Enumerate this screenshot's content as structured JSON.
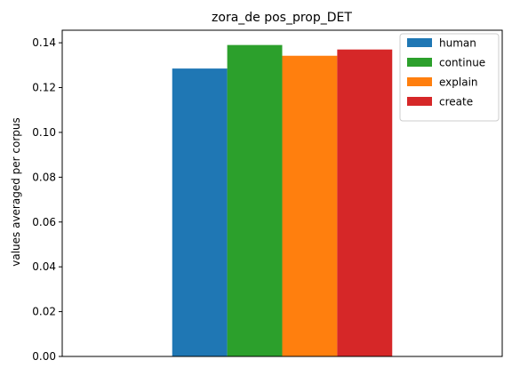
{
  "chart_data": {
    "type": "bar",
    "title": "zora_de pos_prop_DET",
    "xlabel": "",
    "ylabel": "values averaged per corpus",
    "categories": [
      ""
    ],
    "ylim": [
      0,
      0.1456
    ],
    "yticks": [
      0.0,
      0.02,
      0.04,
      0.06,
      0.08,
      0.1,
      0.12,
      0.14
    ],
    "ytick_labels": [
      "0.00",
      "0.02",
      "0.04",
      "0.06",
      "0.08",
      "0.10",
      "0.12",
      "0.14"
    ],
    "grid": false,
    "legend_position": "top-right",
    "series": [
      {
        "name": "human",
        "values": [
          0.1285
        ],
        "color": "#1f77b4"
      },
      {
        "name": "continue",
        "values": [
          0.139
        ],
        "color": "#2ca02c"
      },
      {
        "name": "explain",
        "values": [
          0.1342
        ],
        "color": "#ff7f0e"
      },
      {
        "name": "create",
        "values": [
          0.137
        ],
        "color": "#d62728"
      }
    ]
  }
}
